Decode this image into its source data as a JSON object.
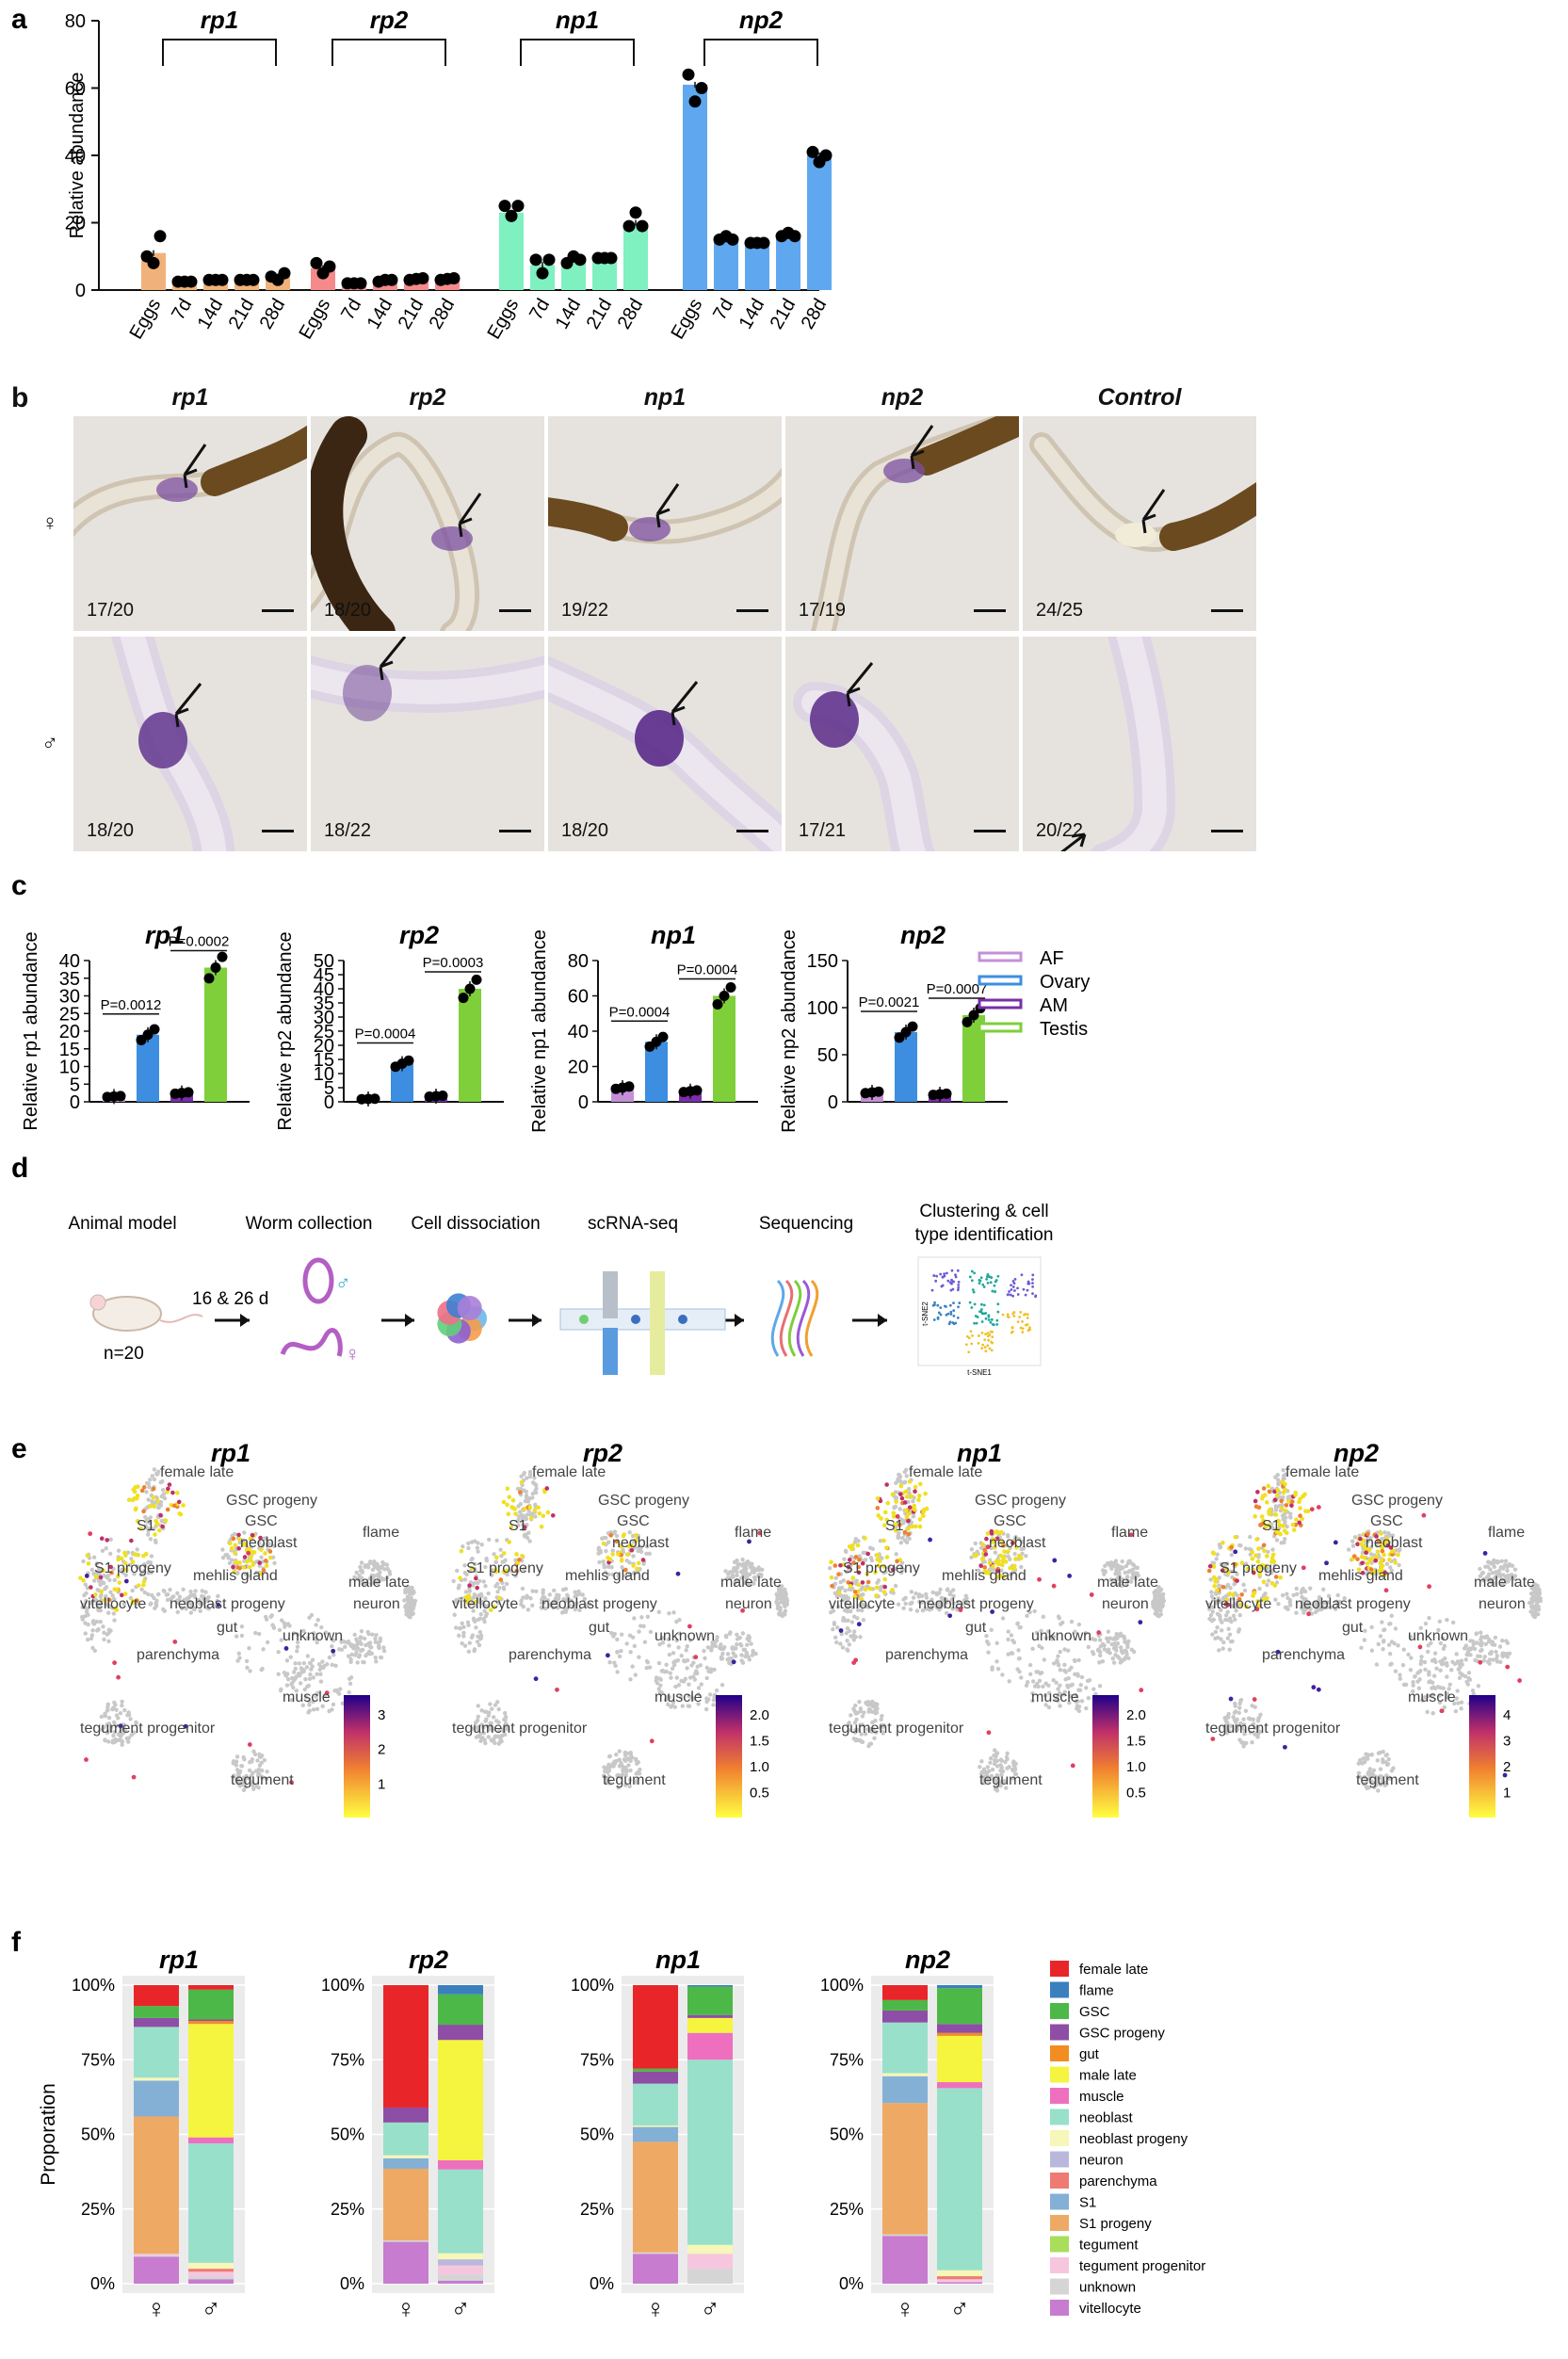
{
  "panel_a": {
    "label": "a",
    "ylabel": "Relative abundance",
    "chart_data": {
      "type": "bar",
      "ylim": [
        0,
        80
      ],
      "yticks": [
        0,
        20,
        40,
        60,
        80
      ],
      "categories": [
        "Eggs",
        "7d",
        "14d",
        "21d",
        "28d"
      ],
      "groups": [
        {
          "name": "rp1",
          "color": "#f0b27a",
          "values": [
            11,
            2.5,
            3,
            3,
            4
          ],
          "points": [
            [
              10,
              8,
              16
            ],
            [
              2.5,
              2.5,
              2.5
            ],
            [
              3,
              3,
              3
            ],
            [
              3,
              3,
              3
            ],
            [
              4,
              3,
              5
            ]
          ]
        },
        {
          "name": "rp2",
          "color": "#f48a8a",
          "values": [
            6.5,
            2,
            3,
            3.3,
            3.3
          ],
          "points": [
            [
              8,
              5,
              7
            ],
            [
              2,
              2,
              2
            ],
            [
              2.5,
              3,
              3
            ],
            [
              3,
              3.3,
              3.5
            ],
            [
              3,
              3.3,
              3.5
            ]
          ]
        },
        {
          "name": "np1",
          "color": "#7ff0c0",
          "values": [
            23,
            7.5,
            9,
            9.5,
            20
          ],
          "points": [
            [
              25,
              22,
              25
            ],
            [
              9,
              5,
              9
            ],
            [
              8,
              10,
              9
            ],
            [
              9.5,
              9.5,
              9.5
            ],
            [
              19,
              23,
              19
            ]
          ]
        },
        {
          "name": "np2",
          "color": "#5fa8f0",
          "values": [
            61,
            15,
            14,
            16,
            40
          ],
          "points": [
            [
              64,
              56,
              60
            ],
            [
              15,
              16,
              15
            ],
            [
              14,
              14,
              14
            ],
            [
              16,
              17,
              16
            ],
            [
              41,
              38,
              40
            ]
          ]
        }
      ]
    }
  },
  "panel_b": {
    "label": "b",
    "columns": [
      "rp1",
      "rp2",
      "np1",
      "np2",
      "Control"
    ],
    "rows": [
      {
        "sex": "♀",
        "counts": [
          "17/20",
          "18/20",
          "19/22",
          "17/19",
          "24/25"
        ]
      },
      {
        "sex": "♂",
        "counts": [
          "18/20",
          "18/22",
          "18/20",
          "17/21",
          "20/22"
        ]
      }
    ]
  },
  "panel_c": {
    "label": "c",
    "legend": [
      {
        "name": "AF",
        "color": "#c58fd8"
      },
      {
        "name": "Ovary",
        "color": "#3d8ee0"
      },
      {
        "name": "AM",
        "color": "#7a2ea8"
      },
      {
        "name": "Testis",
        "color": "#7ecf3a"
      }
    ],
    "chart_data": [
      {
        "type": "bar",
        "title": "rp1",
        "ylabel": "Relative rp1 abundance",
        "ylim": [
          0,
          40
        ],
        "yticks": [
          0,
          5,
          10,
          15,
          20,
          25,
          30,
          35,
          40
        ],
        "categories": [
          "AF",
          "Ovary",
          "AM",
          "Testis"
        ],
        "values": [
          1.5,
          19,
          2.5,
          38
        ],
        "pvalues": [
          "P=0.0012",
          "P=0.0002"
        ]
      },
      {
        "type": "bar",
        "title": "rp2",
        "ylabel": "Relative rp2 abundance",
        "ylim": [
          0,
          50
        ],
        "yticks": [
          0,
          5,
          10,
          15,
          20,
          25,
          30,
          35,
          40,
          45,
          50
        ],
        "categories": [
          "AF",
          "Ovary",
          "AM",
          "Testis"
        ],
        "values": [
          1,
          13.5,
          2,
          40
        ],
        "pvalues": [
          "P=0.0004",
          "P=0.0003"
        ]
      },
      {
        "type": "bar",
        "title": "np1",
        "ylabel": "Relative np1 abundance",
        "ylim": [
          0,
          80
        ],
        "yticks": [
          0,
          20,
          40,
          60,
          80
        ],
        "categories": [
          "AF",
          "Ovary",
          "AM",
          "Testis"
        ],
        "values": [
          8,
          34,
          6,
          60
        ],
        "pvalues": [
          "P=0.0004",
          "P=0.0004"
        ]
      },
      {
        "type": "bar",
        "title": "np2",
        "ylabel": "Relative np2 abundance",
        "ylim": [
          0,
          150
        ],
        "yticks": [
          0,
          50,
          100,
          150
        ],
        "categories": [
          "AF",
          "Ovary",
          "AM",
          "Testis"
        ],
        "values": [
          10,
          74,
          8,
          92
        ],
        "pvalues": [
          "P=0.0021",
          "P=0.0007"
        ]
      }
    ]
  },
  "panel_d": {
    "label": "d",
    "steps": [
      "Animal model",
      "Worm collection",
      "Cell dissociation",
      "scRNA-seq",
      "Sequencing",
      "Clustering & cell",
      "type identification"
    ],
    "time": "16 & 26 d",
    "n": "n=20",
    "male_symbol": "♂",
    "female_symbol": "♀",
    "tsne_ylabel": "t-SNE2",
    "tsne_xlabel": "t-SNE1"
  },
  "panel_e": {
    "label": "e",
    "maps": [
      {
        "title": "rp1",
        "scale": [
          "3",
          "2",
          "1"
        ]
      },
      {
        "title": "rp2",
        "scale": [
          "2.0",
          "1.5",
          "1.0",
          "0.5"
        ]
      },
      {
        "title": "np1",
        "scale": [
          "2.0",
          "1.5",
          "1.0",
          "0.5"
        ]
      },
      {
        "title": "np2",
        "scale": [
          "4",
          "3",
          "2",
          "1"
        ]
      }
    ],
    "clusters": [
      "female late",
      "GSC progeny",
      "GSC",
      "S1",
      "neoblast",
      "flame",
      "S1 progeny",
      "mehlis gland",
      "male late",
      "vitellocyte",
      "neoblast progeny",
      "neuron",
      "gut",
      "unknown",
      "parenchyma",
      "muscle",
      "tegument progenitor",
      "tegument"
    ]
  },
  "panel_f": {
    "label": "f",
    "ylabel": "Proporation",
    "yticks": [
      "0%",
      "25%",
      "50%",
      "75%",
      "100%"
    ],
    "xlabels": [
      "♀",
      "♂"
    ],
    "legend": [
      {
        "name": "female late",
        "color": "#e8262a"
      },
      {
        "name": "flame",
        "color": "#3b7fbf"
      },
      {
        "name": "GSC",
        "color": "#4cb848"
      },
      {
        "name": "GSC progeny",
        "color": "#8e4ea5"
      },
      {
        "name": "gut",
        "color": "#f28d22"
      },
      {
        "name": "male late",
        "color": "#f5f540"
      },
      {
        "name": "muscle",
        "color": "#ef6fbf"
      },
      {
        "name": "neoblast",
        "color": "#98e0ca"
      },
      {
        "name": "neoblast progeny",
        "color": "#f6f7b8"
      },
      {
        "name": "neuron",
        "color": "#b9b8dc"
      },
      {
        "name": "parenchyma",
        "color": "#ef7a72"
      },
      {
        "name": "S1",
        "color": "#84b0d6"
      },
      {
        "name": "S1 progeny",
        "color": "#eeaa64"
      },
      {
        "name": "tegument",
        "color": "#a8de5a"
      },
      {
        "name": "tegument progenitor",
        "color": "#f6c6de"
      },
      {
        "name": "unknown",
        "color": "#d5d5d5"
      },
      {
        "name": "vitellocyte",
        "color": "#c77ccf"
      }
    ],
    "chart_data": [
      {
        "type": "stacked-bar",
        "title": "rp1",
        "bars": [
          {
            "x": "♀",
            "segments": {
              "vitellocyte": 9,
              "unknown": 0.5,
              "tegument progenitor": 0.5,
              "S1 progeny": 46,
              "S1": 12,
              "neoblast progeny": 1,
              "neoblast": 17,
              "GSC progeny": 3,
              "GSC": 4,
              "female late": 7
            }
          },
          {
            "x": "♂",
            "segments": {
              "vitellocyte": 1.5,
              "tegument progenitor": 1.5,
              "unknown": 1,
              "parenchyma": 1,
              "gut": 1,
              "neoblast progeny": 2,
              "neoblast": 40,
              "muscle": 2,
              "male late": 38,
              "GSC progeny": 0.5,
              "GSC": 10,
              "female late": 1.5
            }
          }
        ]
      },
      {
        "type": "stacked-bar",
        "title": "rp2",
        "bars": [
          {
            "x": "♀",
            "segments": {
              "vitellocyte": 14,
              "unknown": 0.5,
              "S1 progeny": 24,
              "S1": 3.5,
              "neoblast progeny": 1,
              "neoblast": 11,
              "GSC progeny": 5,
              "female late": 41
            }
          },
          {
            "x": "♂",
            "segments": {
              "vitellocyte": 1,
              "tegument progenitor": 3,
              "unknown": 2,
              "neuron": 2,
              "neoblast progeny": 2,
              "neoblast": 27.5,
              "muscle": 3,
              "male late": 39.5,
              "GSC progeny": 5,
              "GSC": 10,
              "flame": 3
            }
          }
        ]
      },
      {
        "type": "stacked-bar",
        "title": "np1",
        "bars": [
          {
            "x": "♀",
            "segments": {
              "vitellocyte": 10,
              "unknown": 0.5,
              "S1 progeny": 37,
              "S1": 5,
              "neoblast progeny": 0.5,
              "neoblast": 14,
              "GSC progeny": 4,
              "GSC": 1,
              "female late": 28
            }
          },
          {
            "x": "♂",
            "segments": {
              "tegument progenitor": 5,
              "unknown": 5,
              "neoblast progeny": 3,
              "neoblast": 62,
              "muscle": 9,
              "male late": 5,
              "GSC progeny": 1,
              "GSC": 9.5,
              "flame": 0.5
            }
          }
        ]
      },
      {
        "type": "stacked-bar",
        "title": "np2",
        "bars": [
          {
            "x": "♀",
            "segments": {
              "vitellocyte": 16,
              "unknown": 0.5,
              "S1 progeny": 44,
              "S1": 9,
              "neoblast progeny": 1,
              "neoblast": 17,
              "GSC progeny": 4,
              "GSC": 3.5,
              "female late": 5
            }
          },
          {
            "x": "♂",
            "segments": {
              "vitellocyte": 0.5,
              "parenchyma": 1,
              "gut": 1,
              "tegument progenitor": 1,
              "neoblast progeny": 2,
              "neoblast": 61,
              "muscle": 2,
              "male late": 15.5,
              "GSC progeny": 3,
              "GSC": 12,
              "flame": 1
            }
          }
        ]
      }
    ]
  }
}
